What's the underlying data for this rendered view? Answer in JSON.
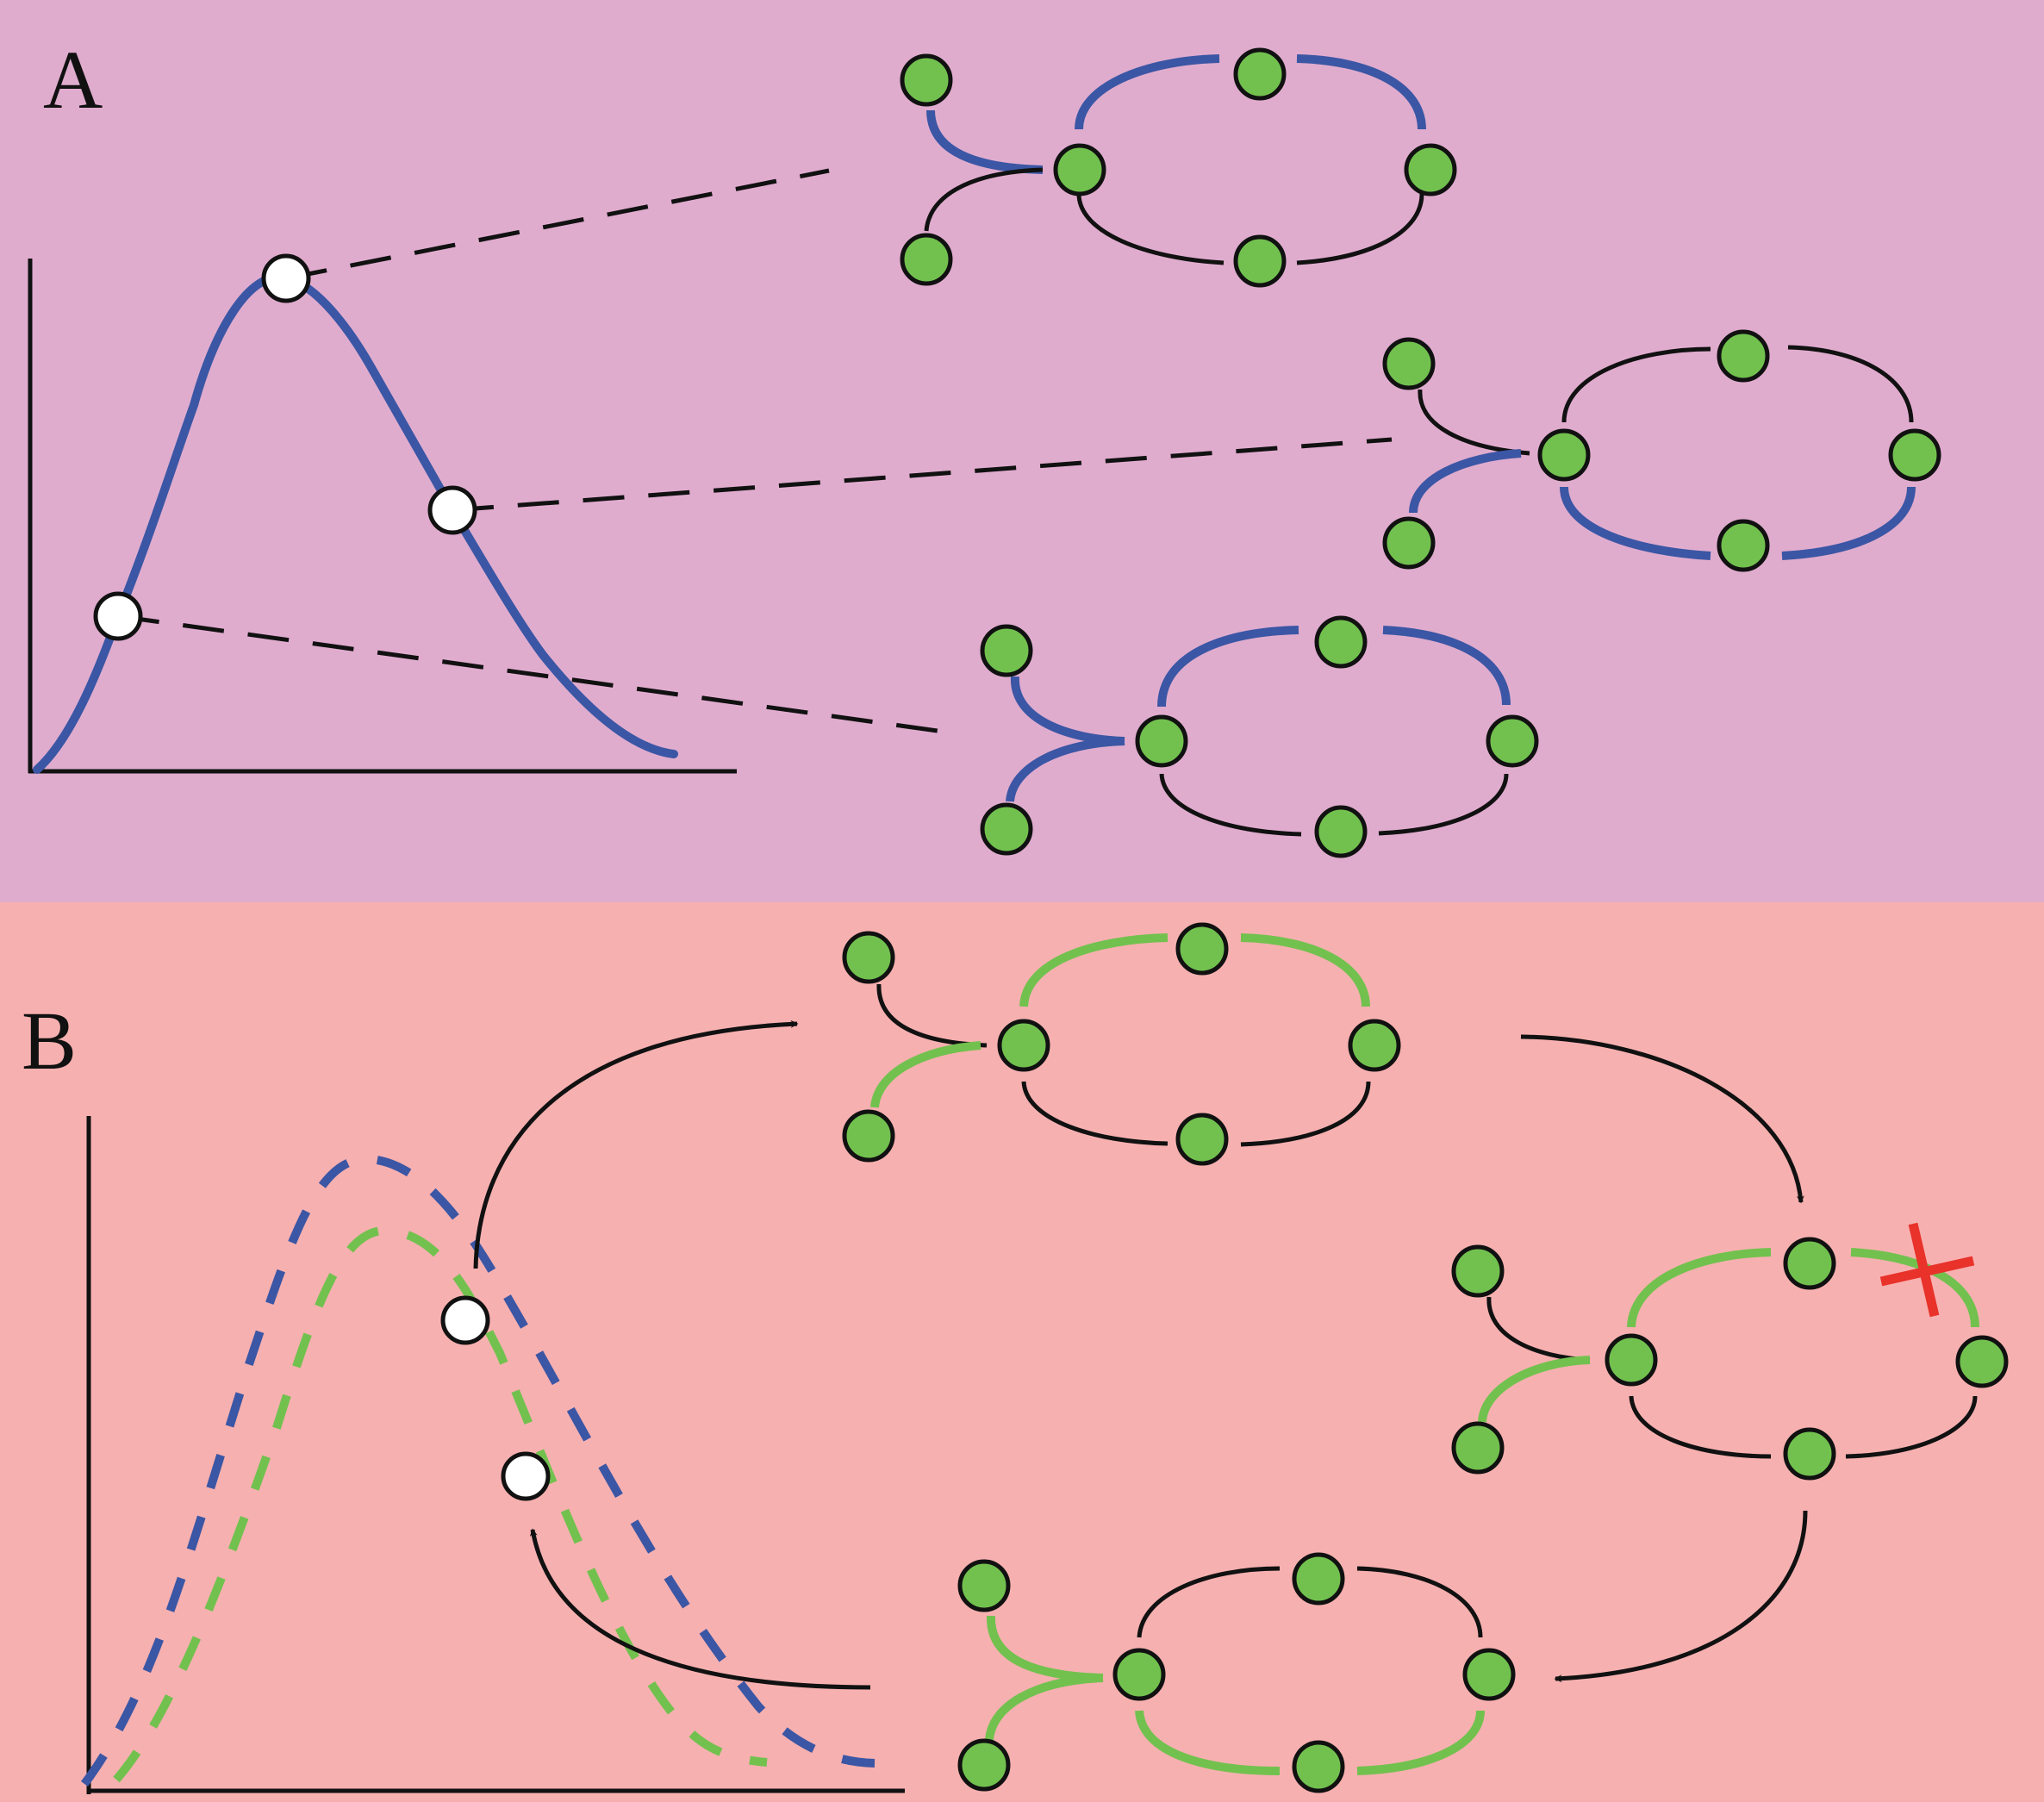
{
  "panels": [
    {
      "id": "A",
      "label": "A",
      "background": "#e0acce"
    },
    {
      "id": "B",
      "label": "B",
      "background": "#f7b0b0"
    }
  ],
  "colors": {
    "node_fill": "#72c14f",
    "node_stroke": "#111111",
    "marker_fill": "#ffffff",
    "blue_curve": "#3b56a4",
    "green_curve": "#72c14f",
    "black_line": "#111111",
    "cross": "#e8322a"
  },
  "icons": {
    "graph_node": "green-circle",
    "curve_marker": "white-circle",
    "flow_arrow": "arrow-right",
    "broken_link": "red-cross"
  }
}
